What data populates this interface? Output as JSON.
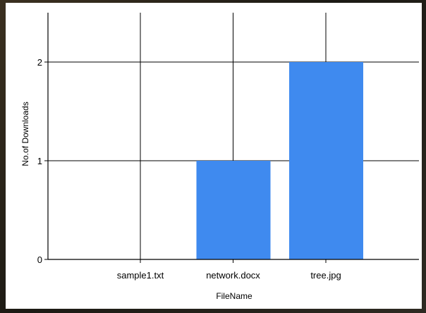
{
  "chart_data": {
    "type": "bar",
    "title": "",
    "xlabel": "FileName",
    "ylabel": "No.of Downloads",
    "categories": [
      "sample1.txt",
      "network.docx",
      "tree.jpg"
    ],
    "values": [
      0,
      1,
      2
    ],
    "ylim": [
      0,
      2.5
    ],
    "yticks": [
      "0",
      "1",
      "2"
    ],
    "grid": true,
    "legend": "none",
    "bar_color": "#3f8aef"
  }
}
